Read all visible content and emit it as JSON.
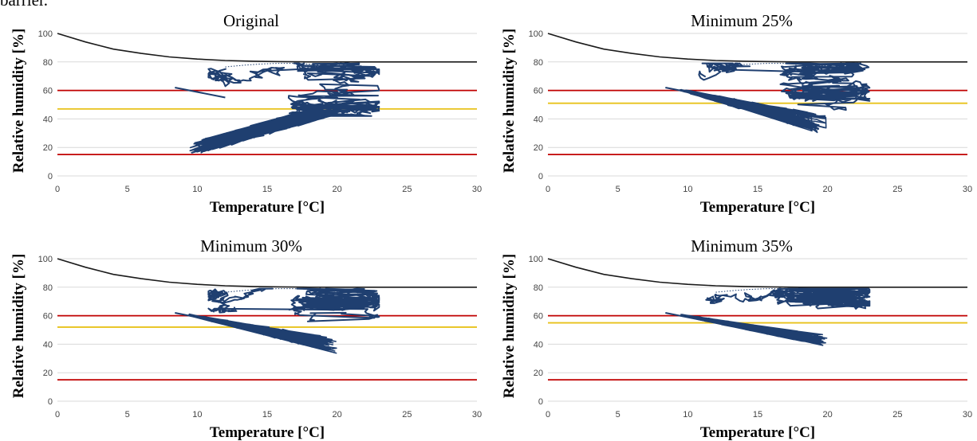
{
  "caption_fragment": "barrier.",
  "colors": {
    "grid": "#d9d9d9",
    "black_curve": "#1a1a1a",
    "red_lines": "#c00000",
    "yellow_line": "#e8c21b",
    "data_trace": "#1f3f70"
  },
  "chart_data": [
    {
      "type": "line",
      "title": "Original",
      "xlabel": "Temperature [°C]",
      "ylabel": "Relative humidity [%]",
      "xlim": [
        0,
        30
      ],
      "ylim": [
        0,
        100
      ],
      "xticks": [
        "0",
        "5",
        "10",
        "15",
        "20",
        "25",
        "30"
      ],
      "yticks": [
        "0",
        "20",
        "40",
        "60",
        "80",
        "100"
      ],
      "grid": "horizontal",
      "red_lines_y": [
        60,
        15
      ],
      "yellow_line_y": 47,
      "black_curve": {
        "x": [
          0,
          2,
          4,
          6,
          8,
          10,
          12,
          14,
          16,
          18,
          20,
          25,
          30
        ],
        "y": [
          100,
          94,
          89,
          86,
          83.5,
          82,
          81,
          80.5,
          80.2,
          80,
          80,
          80,
          80
        ]
      },
      "trace_x_range": [
        8.4,
        23
      ],
      "trace_y_range": [
        15,
        80
      ]
    },
    {
      "type": "line",
      "title": "Minimum 25%",
      "xlabel": "Temperature [°C]",
      "ylabel": "Relative humidity [%]",
      "xlim": [
        0,
        30
      ],
      "ylim": [
        0,
        100
      ],
      "xticks": [
        "0",
        "5",
        "10",
        "15",
        "20",
        "25",
        "30"
      ],
      "yticks": [
        "0",
        "20",
        "40",
        "60",
        "80",
        "100"
      ],
      "grid": "horizontal",
      "red_lines_y": [
        60,
        15
      ],
      "yellow_line_y": 51,
      "black_curve": {
        "x": [
          0,
          2,
          4,
          6,
          8,
          10,
          12,
          14,
          16,
          18,
          20,
          25,
          30
        ],
        "y": [
          100,
          94,
          89,
          86,
          83.5,
          82,
          81,
          80.5,
          80.2,
          80,
          80,
          80,
          80
        ]
      },
      "trace_x_range": [
        8.4,
        23
      ],
      "trace_y_range": [
        28,
        80
      ]
    },
    {
      "type": "line",
      "title": "Minimum 30%",
      "xlabel": "Temperature [°C]",
      "ylabel": "Relative humidity [%]",
      "xlim": [
        0,
        30
      ],
      "ylim": [
        0,
        100
      ],
      "xticks": [
        "0",
        "5",
        "10",
        "15",
        "20",
        "25",
        "30"
      ],
      "yticks": [
        "0",
        "20",
        "40",
        "60",
        "80",
        "100"
      ],
      "grid": "horizontal",
      "red_lines_y": [
        60,
        15
      ],
      "yellow_line_y": 52,
      "black_curve": {
        "x": [
          0,
          2,
          4,
          6,
          8,
          10,
          12,
          14,
          16,
          18,
          20,
          25,
          30
        ],
        "y": [
          100,
          94,
          89,
          86,
          83.5,
          82,
          81,
          80.5,
          80.2,
          80,
          80,
          80,
          80
        ]
      },
      "trace_x_range": [
        8.4,
        23
      ],
      "trace_y_range": [
        33,
        80
      ]
    },
    {
      "type": "line",
      "title": "Minimum 35%",
      "xlabel": "Temperature [°C]",
      "ylabel": "Relative humidity [%]",
      "xlim": [
        0,
        30
      ],
      "ylim": [
        0,
        100
      ],
      "xticks": [
        "0",
        "5",
        "10",
        "15",
        "20",
        "25",
        "30"
      ],
      "yticks": [
        "0",
        "20",
        "40",
        "60",
        "80",
        "100"
      ],
      "grid": "horizontal",
      "red_lines_y": [
        60,
        15
      ],
      "yellow_line_y": 55,
      "black_curve": {
        "x": [
          0,
          2,
          4,
          6,
          8,
          10,
          12,
          14,
          16,
          18,
          20,
          25,
          30
        ],
        "y": [
          100,
          94,
          89,
          86,
          83.5,
          82,
          81,
          80.5,
          80.2,
          80,
          80,
          80,
          80
        ]
      },
      "trace_x_range": [
        8.4,
        23
      ],
      "trace_y_range": [
        38,
        80
      ]
    }
  ]
}
